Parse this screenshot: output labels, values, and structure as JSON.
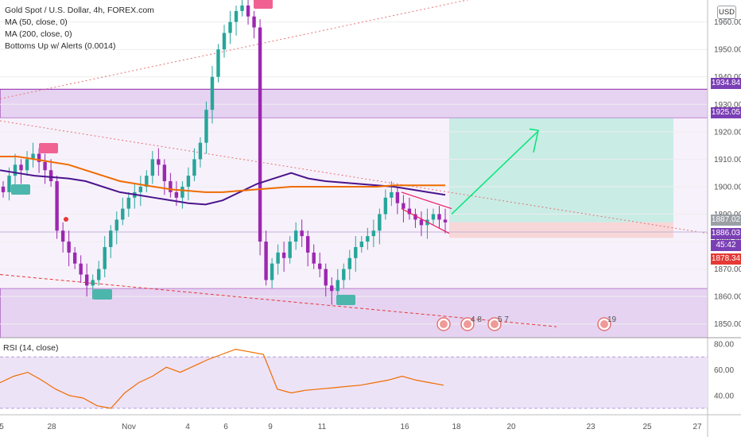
{
  "legend": {
    "title": "Gold Spot / U.S. Dollar, 4h, FOREX.com",
    "ma50": "MA (50, close, 0)",
    "ma200": "MA (200, close, 0)",
    "indicator": "Bottoms Up w/ Alerts (0.0014)"
  },
  "rsi_label": "RSI (14, close)",
  "currency_button": "USD",
  "price_tags": [
    {
      "text": "1934.84",
      "color": "#7b3fb5"
    },
    {
      "text": "1925.05",
      "color": "#7b3fb5"
    },
    {
      "text": "1887.02",
      "color": "#9aa0a6"
    },
    {
      "text": "1886.03",
      "color": "#7b3fb5"
    },
    {
      "text": "45:42",
      "color": "#7b3fb5"
    },
    {
      "text": "1878.34",
      "color": "#e53935"
    }
  ],
  "event_badges": [
    "4 8",
    "5 7",
    "19"
  ],
  "colors": {
    "bull": "#26a69a",
    "bear": "#9c27b0",
    "ma50": "#4a148c",
    "ma200": "#ef6c00",
    "zone": "#e6d3f2",
    "target": "#c9ece5",
    "stop": "#f8d7d9",
    "rsi_line": "#ef6c00",
    "rsi_band": "#ede3f7"
  },
  "chart_data": {
    "type": "line",
    "price_axis": {
      "ticks": [
        1850,
        1860,
        1870,
        1880,
        1890,
        1900,
        1910,
        1920,
        1930,
        1940,
        1950,
        1960
      ],
      "ylim": [
        1845,
        1968
      ]
    },
    "rsi_axis": {
      "ticks": [
        40,
        60,
        80
      ],
      "ylim": [
        25,
        85
      ],
      "bands": [
        30,
        70
      ]
    },
    "x_ticks": [
      "5",
      "28",
      "Nov",
      "4",
      "6",
      "9",
      "11",
      "16",
      "18",
      "20",
      "23",
      "25",
      "27"
    ],
    "series": [
      {
        "name": "MA (50, close, 0)",
        "values": [
          1906,
          1905,
          1904,
          1903.5,
          1903,
          1902,
          1900,
          1898,
          1897,
          1896,
          1895,
          1894,
          1893.5,
          1895,
          1898,
          1901,
          1903,
          1905,
          1903,
          1902,
          1901.5,
          1901,
          1900.5,
          1900,
          1899,
          1898,
          1897
        ]
      },
      {
        "name": "MA (200, close, 0)",
        "values": [
          1911,
          1911,
          1910,
          1909,
          1908,
          1906,
          1904,
          1902,
          1901,
          1900,
          1899,
          1898.5,
          1898,
          1898,
          1898.5,
          1899,
          1899.5,
          1900,
          1900,
          1900,
          1900,
          1900,
          1900,
          1900.5,
          1900.5,
          1900.5,
          1900.5
        ]
      }
    ],
    "rsi_values": [
      50,
      55,
      58,
      52,
      45,
      40,
      38,
      32,
      30,
      42,
      50,
      55,
      62,
      58,
      63,
      68,
      72,
      76,
      74,
      72,
      45,
      42,
      44,
      45,
      46,
      47,
      48,
      50,
      52,
      55,
      52,
      50,
      48
    ],
    "levels": [
      {
        "value": 1934.84,
        "kind": "zone-top"
      },
      {
        "value": 1925.05,
        "kind": "zone-bottom"
      },
      {
        "value": 1887.02,
        "kind": "entry"
      },
      {
        "value": 1886.03,
        "kind": "last"
      },
      {
        "value": 1878.34,
        "kind": "stop"
      },
      {
        "value": 1863,
        "kind": "support-zone-top"
      }
    ]
  }
}
